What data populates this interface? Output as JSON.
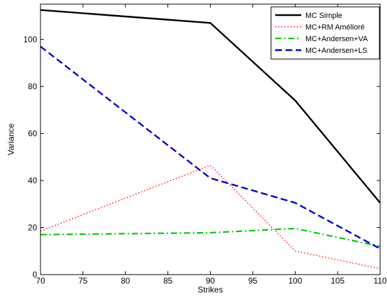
{
  "chart_data": {
    "type": "line",
    "title": "",
    "xlabel": "Strikes",
    "ylabel": "Variance",
    "xlim": [
      70,
      110
    ],
    "ylim": [
      0,
      115
    ],
    "x_ticks": [
      70,
      75,
      80,
      85,
      90,
      95,
      100,
      105,
      110
    ],
    "y_ticks": [
      0,
      20,
      40,
      60,
      80,
      100
    ],
    "grid": false,
    "legend_position": "top-right",
    "x": [
      70,
      90,
      100,
      110
    ],
    "series": [
      {
        "name": "MC Simple",
        "values": [
          112.5,
          107,
          74,
          30.5
        ],
        "color": "#000000",
        "style": "solid"
      },
      {
        "name": "MC+RM Amélioré",
        "values": [
          18.5,
          46.5,
          10,
          2.5
        ],
        "color": "#ff0000",
        "style": "dotted"
      },
      {
        "name": "MC+Andersen+VA",
        "values": [
          17,
          17.8,
          19.6,
          12
        ],
        "color": "#00cc00",
        "style": "dashdot"
      },
      {
        "name": "MC+Andersen+LS",
        "values": [
          97,
          41,
          30.5,
          11
        ],
        "color": "#0000cc",
        "style": "dashed"
      }
    ]
  }
}
